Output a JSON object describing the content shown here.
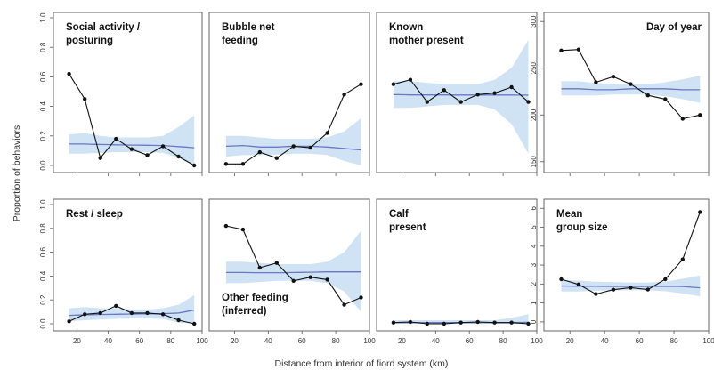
{
  "figure": {
    "ylabel": "Proportion of behaviors",
    "xlabel": "Distance from interior of fiord system (km)",
    "colors": {
      "band": "#cfe3f4",
      "mean_line": "#6b77c4",
      "observed": "#111111",
      "frame": "#555555"
    }
  },
  "chart_data": [
    {
      "type": "line",
      "title_lines": [
        "Social activity /",
        "posturing"
      ],
      "title_pos": "top-left",
      "x": [
        15,
        25,
        35,
        45,
        55,
        65,
        75,
        85,
        95
      ],
      "ylim": [
        0,
        1
      ],
      "yticks": [
        "0.0",
        "0.2",
        "0.4",
        "0.6",
        "0.8",
        "1.0"
      ],
      "xlim": [
        5,
        100
      ],
      "xticks": [
        "20",
        "40",
        "60",
        "80",
        "100"
      ],
      "show_xticks": false,
      "observed": [
        0.62,
        0.45,
        0.05,
        0.18,
        0.11,
        0.07,
        0.13,
        0.06,
        0.0
      ],
      "band_x": [
        15,
        95
      ],
      "expected": [
        0.145,
        0.145,
        0.142,
        0.14,
        0.138,
        0.137,
        0.135,
        0.128,
        0.12
      ],
      "band_low": [
        0.08,
        0.08,
        0.085,
        0.09,
        0.09,
        0.09,
        0.085,
        0.05,
        0.0
      ],
      "band_high": [
        0.21,
        0.22,
        0.2,
        0.19,
        0.19,
        0.19,
        0.2,
        0.26,
        0.34
      ]
    },
    {
      "type": "line",
      "title_lines": [
        "Bubble net",
        "feeding"
      ],
      "title_pos": "top-left",
      "x": [
        15,
        25,
        35,
        45,
        55,
        65,
        75,
        85,
        95
      ],
      "ylim": [
        0,
        1
      ],
      "yticks": [],
      "xlim": [
        5,
        100
      ],
      "xticks": [
        "20",
        "40",
        "60",
        "80",
        "100"
      ],
      "show_xticks": false,
      "observed": [
        0.01,
        0.01,
        0.09,
        0.05,
        0.13,
        0.12,
        0.22,
        0.48,
        0.55
      ],
      "band_x": [
        15,
        95
      ],
      "expected": [
        0.13,
        0.135,
        0.125,
        0.125,
        0.13,
        0.13,
        0.125,
        0.115,
        0.105
      ],
      "band_low": [
        0.06,
        0.07,
        0.07,
        0.075,
        0.08,
        0.08,
        0.07,
        0.03,
        0.0
      ],
      "band_high": [
        0.2,
        0.2,
        0.19,
        0.18,
        0.18,
        0.18,
        0.19,
        0.23,
        0.32
      ]
    },
    {
      "type": "line",
      "title_lines": [
        "Known",
        "mother present"
      ],
      "title_pos": "top-left",
      "x": [
        15,
        25,
        35,
        45,
        55,
        65,
        75,
        85,
        95
      ],
      "ylim": [
        0,
        1
      ],
      "yticks": [],
      "xlim": [
        5,
        100
      ],
      "xticks": [
        "20",
        "40",
        "60",
        "80",
        "100"
      ],
      "show_xticks": false,
      "observed": [
        0.55,
        0.58,
        0.43,
        0.51,
        0.43,
        0.48,
        0.49,
        0.53,
        0.43
      ],
      "band_x": [
        15,
        95
      ],
      "expected": [
        0.48,
        0.478,
        0.478,
        0.478,
        0.477,
        0.477,
        0.477,
        0.477,
        0.476
      ],
      "band_low": [
        0.39,
        0.39,
        0.4,
        0.41,
        0.41,
        0.41,
        0.38,
        0.28,
        0.08
      ],
      "band_high": [
        0.57,
        0.57,
        0.56,
        0.55,
        0.55,
        0.55,
        0.58,
        0.66,
        0.85
      ]
    },
    {
      "type": "line",
      "title_lines": [
        "Day of year"
      ],
      "title_pos": "top-right",
      "x": [
        15,
        25,
        35,
        45,
        55,
        65,
        75,
        85,
        95
      ],
      "ylim": [
        146,
        304
      ],
      "yticks": [
        "150",
        "200",
        "250",
        "300"
      ],
      "ytick_values": [
        150,
        200,
        250,
        300
      ],
      "xlim": [
        5,
        100
      ],
      "xticks": [
        "20",
        "40",
        "60",
        "80",
        "100"
      ],
      "show_xticks": false,
      "observed": [
        269,
        270,
        235,
        241,
        233,
        221,
        217,
        196,
        200
      ],
      "band_x": [
        15,
        95
      ],
      "expected": [
        228,
        228,
        227,
        227,
        228,
        228,
        228,
        227,
        227
      ],
      "band_low": [
        221,
        221,
        221,
        222,
        222,
        222,
        220,
        217,
        213
      ],
      "band_high": [
        236,
        236,
        234,
        233,
        233,
        233,
        235,
        238,
        242
      ]
    },
    {
      "type": "line",
      "title_lines": [
        "Rest / sleep"
      ],
      "title_pos": "top-left",
      "x": [
        15,
        25,
        35,
        45,
        55,
        65,
        75,
        85,
        95
      ],
      "ylim": [
        0,
        1
      ],
      "yticks": [
        "0.0",
        "0.2",
        "0.4",
        "0.6",
        "0.8",
        "1.0"
      ],
      "xlim": [
        5,
        100
      ],
      "xticks": [
        "20",
        "40",
        "60",
        "80",
        "100"
      ],
      "show_xticks": true,
      "observed": [
        0.02,
        0.08,
        0.09,
        0.15,
        0.09,
        0.09,
        0.08,
        0.03,
        0.0
      ],
      "band_x": [
        15,
        95
      ],
      "expected": [
        0.07,
        0.075,
        0.078,
        0.08,
        0.082,
        0.083,
        0.085,
        0.09,
        0.115
      ],
      "band_low": [
        0.02,
        0.03,
        0.035,
        0.04,
        0.045,
        0.045,
        0.04,
        0.01,
        0.0
      ],
      "band_high": [
        0.13,
        0.14,
        0.13,
        0.13,
        0.12,
        0.12,
        0.13,
        0.16,
        0.24
      ]
    },
    {
      "type": "line",
      "title_lines": [
        "Other feeding",
        "(inferred)"
      ],
      "title_pos": "bottom-left",
      "x": [
        15,
        25,
        35,
        45,
        55,
        65,
        75,
        85,
        95
      ],
      "ylim": [
        0,
        1
      ],
      "yticks": [],
      "xlim": [
        5,
        100
      ],
      "xticks": [
        "20",
        "40",
        "60",
        "80",
        "100"
      ],
      "show_xticks": true,
      "observed": [
        0.82,
        0.79,
        0.47,
        0.51,
        0.36,
        0.39,
        0.37,
        0.16,
        0.22
      ],
      "band_x": [
        15,
        95
      ],
      "expected": [
        0.43,
        0.43,
        0.428,
        0.428,
        0.43,
        0.432,
        0.435,
        0.435,
        0.435
      ],
      "band_low": [
        0.34,
        0.34,
        0.35,
        0.36,
        0.36,
        0.36,
        0.34,
        0.27,
        0.1
      ],
      "band_high": [
        0.52,
        0.52,
        0.51,
        0.5,
        0.5,
        0.5,
        0.52,
        0.6,
        0.78
      ]
    },
    {
      "type": "line",
      "title_lines": [
        "Calf",
        "present"
      ],
      "title_pos": "top-left",
      "x": [
        15,
        25,
        35,
        45,
        55,
        65,
        75,
        85,
        95
      ],
      "ylim": [
        0,
        1
      ],
      "yticks": [],
      "xlim": [
        5,
        100
      ],
      "xticks": [
        "20",
        "40",
        "60",
        "80",
        "100"
      ],
      "show_xticks": true,
      "observed": [
        0.01,
        0.015,
        0.0,
        0.0,
        0.01,
        0.015,
        0.01,
        0.01,
        0.0
      ],
      "band_x": [
        15,
        95
      ],
      "expected": [
        0.01,
        0.01,
        0.01,
        0.01,
        0.01,
        0.01,
        0.01,
        0.01,
        0.012
      ],
      "band_low": [
        0.0,
        0.0,
        0.0,
        0.0,
        0.0,
        0.0,
        0.0,
        0.0,
        0.0
      ],
      "band_high": [
        0.03,
        0.03,
        0.03,
        0.03,
        0.03,
        0.03,
        0.03,
        0.05,
        0.08
      ]
    },
    {
      "type": "line",
      "title_lines": [
        "Mean",
        "group size"
      ],
      "title_pos": "top-left",
      "x": [
        15,
        25,
        35,
        45,
        55,
        65,
        75,
        85,
        95
      ],
      "ylim": [
        -0.1,
        6.2
      ],
      "yticks": [
        "0",
        "1",
        "2",
        "3",
        "4",
        "5",
        "6"
      ],
      "ytick_values": [
        0,
        1,
        2,
        3,
        4,
        5,
        6
      ],
      "xlim": [
        5,
        100
      ],
      "xticks": [
        "20",
        "40",
        "60",
        "80",
        "100"
      ],
      "show_xticks": true,
      "observed": [
        2.25,
        1.98,
        1.47,
        1.7,
        1.81,
        1.71,
        2.25,
        3.3,
        5.8
      ],
      "band_x": [
        15,
        95
      ],
      "expected": [
        1.9,
        1.88,
        1.88,
        1.87,
        1.87,
        1.87,
        1.88,
        1.87,
        1.8
      ],
      "band_low": [
        1.6,
        1.6,
        1.65,
        1.66,
        1.67,
        1.67,
        1.62,
        1.5,
        1.35
      ],
      "band_high": [
        2.2,
        2.18,
        2.12,
        2.1,
        2.08,
        2.08,
        2.12,
        2.28,
        2.45
      ]
    }
  ]
}
